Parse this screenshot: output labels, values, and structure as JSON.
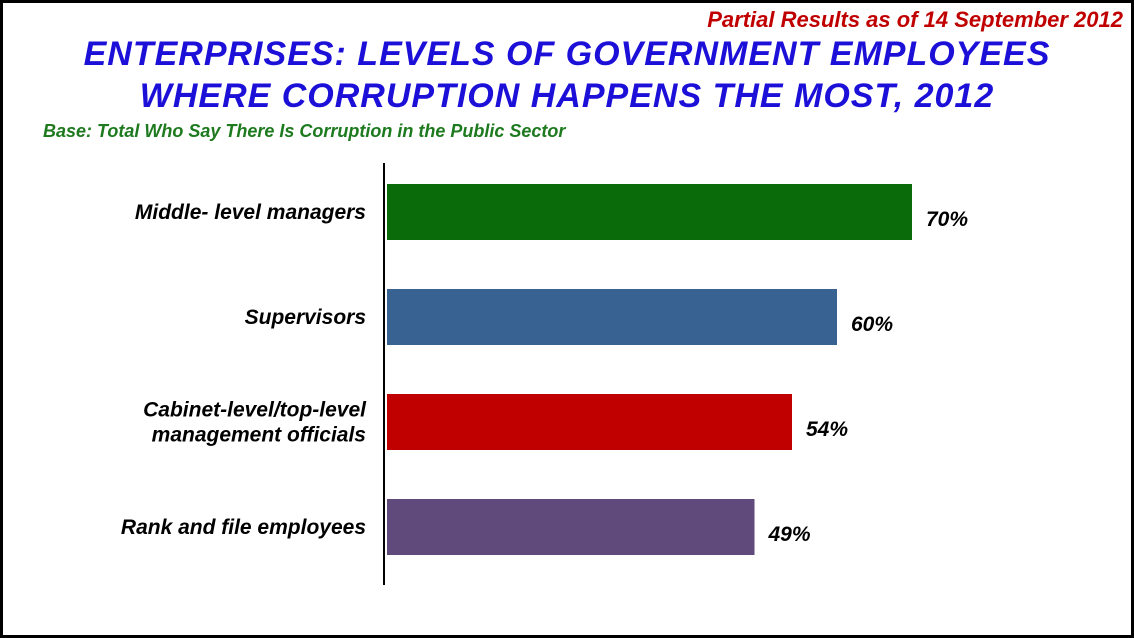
{
  "header": {
    "note": "Partial Results as of 14 September 2012",
    "title_line1": "ENTERPRISES: LEVELS OF GOVERNMENT EMPLOYEES",
    "title_line2": "WHERE CORRUPTION HAPPENS THE MOST, 2012",
    "base": "Base: Total Who Say There Is Corruption in the Public Sector"
  },
  "colors": {
    "note": "#c00000",
    "title": "#1c10d8",
    "base": "#1e7a1e"
  },
  "chart_data": {
    "type": "bar",
    "orientation": "horizontal",
    "title": "ENTERPRISES: LEVELS OF GOVERNMENT EMPLOYEES WHERE CORRUPTION HAPPENS THE MOST, 2012",
    "subtitle": "Base: Total Who Say There Is Corruption in the Public Sector",
    "categories": [
      [
        "Middle- level managers"
      ],
      [
        "Supervisors"
      ],
      [
        "Cabinet-level/top-level",
        "management officials"
      ],
      [
        "Rank and file employees"
      ]
    ],
    "values": [
      70,
      60,
      54,
      49
    ],
    "value_labels": [
      "70%",
      "60%",
      "54%",
      "49%"
    ],
    "bar_colors": [
      "#0a6b0a",
      "#376292",
      "#c00000",
      "#604a7b"
    ],
    "xlim": [
      0,
      100
    ],
    "grid": false,
    "legend": "none"
  }
}
